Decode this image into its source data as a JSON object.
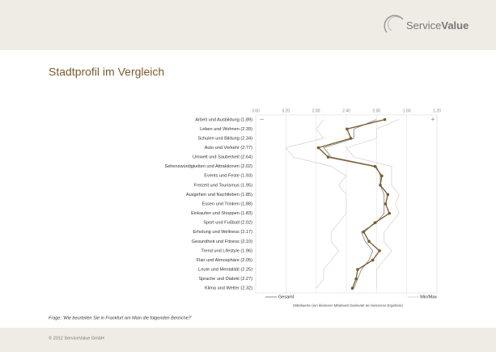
{
  "header": {
    "logo_part1": "Service",
    "logo_part2": "Value"
  },
  "footnote": "Frage: 'Wie beurteilen Sie in Frankfurt am Main die folgenden Bereiche?'",
  "footer": "© 2012 ServiceValue GmbH",
  "chart_data": {
    "type": "line",
    "title": "Stadtprofil im Vergleich",
    "x_label": "Mittelwerte (ein kleinerer Mittelwert bedeutet ein besseres Ergebnis)",
    "minus_label": "−",
    "plus_label": "+",
    "categories": [
      "Arbeit und Ausbildung (1.89)",
      "Leben und Wohnen (2.39)",
      "Schulen und Bildung (2.34)",
      "Auto und Verkehr (2.77)",
      "Umwelt und Sauberkeit (2.64)",
      "Sehenswürdigkeiten und Attraktionen (2.02)",
      "Events und Feste (1.93)",
      "Freizeit und Tourismus (1.95)",
      "Ausgehen und Nachtleben (1.85)",
      "Essen und Trinken (1.88)",
      "Einkaufen und Shoppen (1.83)",
      "Sport und Fußball (2.02)",
      "Erholung und Wellness (2.17)",
      "Gesundheit und Fitness (2.10)",
      "Trend und Lifestyle (1.96)",
      "Flair und Atmosphäre (2.05)",
      "Leute und Mentalität (2.25)",
      "Sprache und Dialekt (2.27)",
      "Klima und Wetter (2.32)"
    ],
    "series": [
      {
        "color": "#7b5a2e",
        "values": [
          1.89,
          2.39,
          2.34,
          2.77,
          2.64,
          2.02,
          1.93,
          1.95,
          1.85,
          1.88,
          1.83,
          2.02,
          2.17,
          2.1,
          1.96,
          2.05,
          2.25,
          2.27,
          2.32
        ]
      },
      {
        "name": "Gesamt",
        "color": "#8c8c8c",
        "values": [
          2.0,
          2.3,
          2.3,
          2.7,
          2.6,
          2.0,
          1.95,
          1.95,
          1.9,
          1.9,
          1.9,
          2.0,
          2.2,
          2.15,
          2.05,
          2.1,
          2.2,
          2.25,
          2.3
        ]
      },
      {
        "name": "Min/Max",
        "color": "#d6d6d6",
        "min": [
          1.7,
          2.0,
          2.0,
          2.4,
          2.3,
          1.8,
          1.8,
          1.8,
          1.7,
          1.75,
          1.7,
          1.8,
          1.9,
          1.9,
          1.8,
          1.9,
          2.0,
          2.0,
          2.0
        ],
        "max": [
          2.7,
          2.8,
          2.7,
          3.2,
          3.1,
          2.6,
          2.4,
          2.5,
          2.4,
          2.4,
          2.4,
          2.5,
          2.6,
          2.6,
          2.5,
          2.6,
          2.7,
          2.7,
          2.8
        ]
      }
    ],
    "xlim": [
      3.6,
      1.2
    ],
    "xticks": [
      {
        "value": 3.6,
        "label": "3.60"
      },
      {
        "value": 3.2,
        "label": "3.20"
      },
      {
        "value": 2.8,
        "label": "2.80"
      },
      {
        "value": 2.4,
        "label": "2.40"
      },
      {
        "value": 2.0,
        "label": "2.00"
      },
      {
        "value": 1.6,
        "label": "1.60"
      },
      {
        "value": 1.2,
        "label": "1.20"
      }
    ],
    "grid": true
  }
}
